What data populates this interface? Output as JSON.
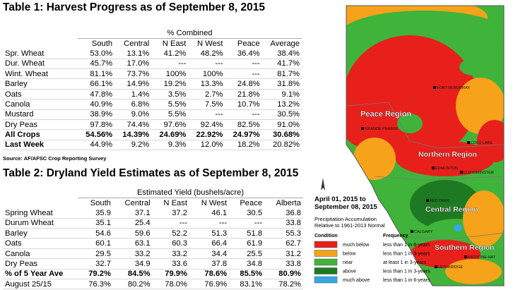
{
  "table1": {
    "title": "Table 1: Harvest Progress as of September 8, 2015",
    "group_header": "% Combined",
    "columns": [
      "South",
      "Central",
      "N East",
      "N West",
      "Peace",
      "Average"
    ],
    "rows": [
      {
        "label": "Spr. Wheat",
        "cells": [
          "53.0%",
          "13.1%",
          "41.2%",
          "48.2%",
          "36.4%",
          "38.4%"
        ]
      },
      {
        "label": "Dur. Wheat",
        "cells": [
          "45.7%",
          "17.0%",
          "---",
          "---",
          "---",
          "41.7%"
        ]
      },
      {
        "label": "Wint. Wheat",
        "cells": [
          "81.1%",
          "73.7%",
          "100%",
          "100%",
          "---",
          "81.7%"
        ]
      },
      {
        "label": "Barley",
        "cells": [
          "66.1%",
          "14.9%",
          "19.2%",
          "13.3%",
          "24.8%",
          "31.8%"
        ]
      },
      {
        "label": "Oats",
        "cells": [
          "47.8%",
          "1.4%",
          "3.5%",
          "2.7%",
          "21.8%",
          "9.1%"
        ]
      },
      {
        "label": "Canola",
        "cells": [
          "40.9%",
          "6.8%",
          "5.5%",
          "7.5%",
          "10.7%",
          "13.2%"
        ]
      },
      {
        "label": "Mustard",
        "cells": [
          "38.9%",
          "9.0%",
          "5.5%",
          "---",
          "---",
          "30.5%"
        ]
      },
      {
        "label": "Dry Peas",
        "cells": [
          "97.8%",
          "74.4%",
          "97.6%",
          "92.4%",
          "82.5%",
          "91.0%"
        ]
      },
      {
        "label": "All Crops",
        "cells": [
          "54.56%",
          "14.39%",
          "24.69%",
          "22.92%",
          "24.97%",
          "30.68%"
        ]
      },
      {
        "label": "Last Week",
        "cells": [
          "44.9%",
          "9.2%",
          "9.3%",
          "12.0%",
          "18.2%",
          "20.82%"
        ]
      }
    ],
    "source": "Source: AF/AFSC Crop Reporting Survey"
  },
  "table2": {
    "title": "Table 2: Dryland Yield Estimates as of September 8, 2015",
    "group_header": "Estimated Yield (bushels/acre)",
    "columns": [
      "South",
      "Central",
      "N East",
      "N West",
      "Peace",
      "Alberta"
    ],
    "rows": [
      {
        "label": "Spring Wheat",
        "cells": [
          "35.9",
          "37.1",
          "37.2",
          "46.1",
          "30.5",
          "36.8"
        ]
      },
      {
        "label": "Durum Wheat",
        "cells": [
          "35.1",
          "25.4",
          "---",
          "---",
          "---",
          "33.8"
        ]
      },
      {
        "label": "Barley",
        "cells": [
          "54.6",
          "59.6",
          "52.2",
          "51.3",
          "51.8",
          "55.3"
        ]
      },
      {
        "label": "Oats",
        "cells": [
          "60.1",
          "63.1",
          "60.3",
          "66.4",
          "61.9",
          "62.7"
        ]
      },
      {
        "label": "Canola",
        "cells": [
          "29.5",
          "33.2",
          "33.2",
          "34.4",
          "25.5",
          "31.2"
        ]
      },
      {
        "label": "Dry Peas",
        "cells": [
          "32.7",
          "34.9",
          "33.6",
          "37.8",
          "34.8",
          "33.8"
        ]
      },
      {
        "label": "% of 5 Year Ave",
        "cells": [
          "79.2%",
          "84.5%",
          "79.9%",
          "78.6%",
          "85.5%",
          "80.9%"
        ]
      },
      {
        "label": "August 25/15",
        "cells": [
          "76.3%",
          "80.2%",
          "78.0%",
          "76.9%",
          "83.1%",
          "78.2%"
        ]
      }
    ]
  },
  "map": {
    "legend": {
      "period": [
        "April 01, 2015 to",
        "September 08, 2015"
      ],
      "description": [
        "Precipitation Accumulation",
        "Relative to 1961-2013 Normal"
      ],
      "condition_header": "Condition",
      "frequency_header": "Frequency",
      "items": [
        {
          "condition": "much below",
          "frequency": "less than 1 in 6-years",
          "color": "#e8201c"
        },
        {
          "condition": "below",
          "frequency": "less than 1 in 3-years",
          "color": "#f7a21b"
        },
        {
          "condition": "near",
          "frequency": "at least 1 in 3-years",
          "color": "#3fb33a"
        },
        {
          "condition": "above",
          "frequency": "less than 1 in 3-years",
          "color": "#1d7a22"
        },
        {
          "condition": "much above",
          "frequency": "less than 1 in 6-years",
          "color": "#33a9e0"
        }
      ]
    },
    "regions": [
      "Peace Region",
      "Northern Region",
      "Central Region",
      "Southern Region"
    ],
    "cities": [
      "FORT McMURRAY",
      "GRANDE PRAIRIE",
      "COLD LAKE",
      "EDMONTON",
      "LLOYDMINSTER",
      "RED DEER",
      "CALGARY",
      "MEDICINE HAT",
      "LETHBRIDGE"
    ]
  }
}
